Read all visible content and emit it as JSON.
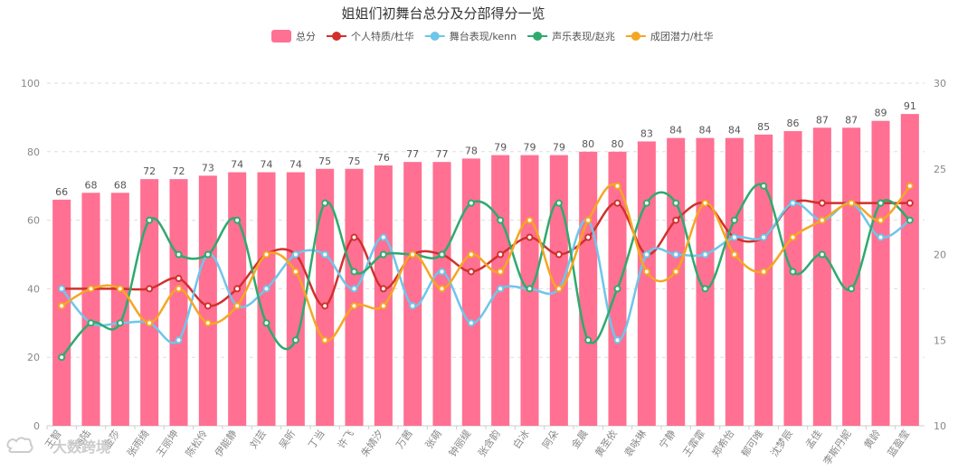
{
  "chart_data": {
    "type": "bar",
    "title": "姐姐们初舞台总分及分部得分一览",
    "categories": [
      "王智",
      "海陆",
      "金莎",
      "张雨绮",
      "王丽坤",
      "陈松伶",
      "伊能静",
      "刘芸",
      "吴昕",
      "丁当",
      "许飞",
      "朱婧汐",
      "万茜",
      "张萌",
      "钟丽缇",
      "张含韵",
      "白冰",
      "阿朵",
      "金晨",
      "黄圣依",
      "袁咏琳",
      "宁静",
      "王霏霏",
      "郑希怡",
      "郁可唯",
      "沈梦辰",
      "孟佳",
      "李斯丹妮",
      "黄龄",
      "蓝盈莹"
    ],
    "bar_series": {
      "name": "总分",
      "color": "#ff7092",
      "values": [
        66,
        68,
        68,
        72,
        72,
        73,
        74,
        74,
        74,
        75,
        75,
        76,
        77,
        77,
        78,
        79,
        79,
        79,
        80,
        80,
        83,
        84,
        84,
        84,
        85,
        86,
        87,
        87,
        89,
        91
      ]
    },
    "line_series": [
      {
        "name": "个人特质/杜华",
        "color": "#d0312d",
        "values": [
          40,
          40,
          40,
          40,
          43,
          35,
          40,
          50,
          50,
          35,
          55,
          40,
          50,
          50,
          45,
          50,
          55,
          50,
          55,
          65,
          50,
          60,
          65,
          55,
          55,
          65,
          65,
          65,
          65,
          65
        ]
      },
      {
        "name": "舞台表现/kenn",
        "color": "#6ec6ea",
        "values": [
          40,
          30,
          30,
          30,
          25,
          50,
          35,
          40,
          50,
          50,
          40,
          55,
          35,
          45,
          30,
          40,
          40,
          40,
          60,
          25,
          50,
          50,
          50,
          55,
          55,
          65,
          60,
          65,
          55,
          60
        ]
      },
      {
        "name": "声乐表现/赵兆",
        "color": "#2eaa6e",
        "values": [
          20,
          30,
          30,
          60,
          50,
          50,
          60,
          30,
          25,
          65,
          45,
          50,
          50,
          50,
          65,
          60,
          40,
          65,
          25,
          40,
          65,
          65,
          40,
          60,
          70,
          45,
          50,
          40,
          65,
          60
        ]
      },
      {
        "name": "成团潜力/杜华",
        "color": "#f5a623",
        "values": [
          35,
          40,
          40,
          30,
          40,
          30,
          35,
          50,
          45,
          25,
          35,
          35,
          50,
          40,
          50,
          45,
          60,
          40,
          60,
          70,
          45,
          45,
          65,
          50,
          45,
          55,
          60,
          65,
          60,
          70
        ]
      }
    ],
    "y_left": {
      "min": 0,
      "max": 100,
      "ticks": [
        0,
        20,
        40,
        60,
        80,
        100
      ]
    },
    "y_right": {
      "min": 10,
      "max": 30,
      "ticks": [
        10,
        15,
        20,
        25,
        30
      ]
    },
    "grid": true,
    "legend_position": "top-center"
  },
  "watermark": "大数跨境"
}
